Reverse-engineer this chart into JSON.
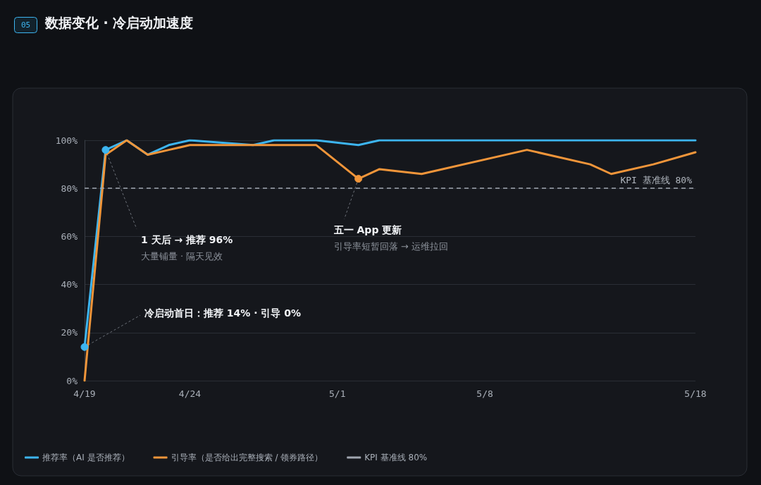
{
  "chart_data": {
    "type": "line",
    "title": "数据变化 · 冷启动加速度",
    "annotations": [
      "05",
      {
        "text": "1 天后 → 推荐 96%",
        "x": "--04-20",
        "y": 96
      },
      "大量铺量 · 隔天见效",
      {
        "text": "冷启动首日：推荐 14% · 引导 0%",
        "x": "--04-19",
        "y": 14
      },
      {
        "text": "五一 App 更新",
        "x": "--05-02",
        "y": 84
      },
      "引导率短暂回落 → 运维拉回"
    ],
    "series": [
      {
        "name": "推荐率（AI 是否推荐）",
        "color": "#3db5f0",
        "x": [
          "--04-19",
          "--04-20",
          "--04-21",
          "--04-22",
          "--04-23",
          "--04-24",
          "--04-27",
          "--04-28",
          "--04-30",
          "--05-02",
          "--05-03",
          "--05-18"
        ],
        "values": [
          14,
          96,
          100,
          94,
          98,
          100,
          98,
          100,
          100,
          98,
          100,
          100
        ]
      },
      {
        "name": "引导率（是否给出完整搜索 / 领券路径）",
        "color": "#f0953a",
        "x": [
          "--04-19",
          "--04-20",
          "--04-21",
          "--04-22",
          "--04-23",
          "--04-24",
          "--04-30",
          "--05-02",
          "--05-03",
          "--05-05",
          "--05-10",
          "--05-13",
          "--05-14",
          "--05-16",
          "--05-18"
        ],
        "values": [
          0,
          94,
          100,
          94,
          96,
          98,
          98,
          84,
          88,
          86,
          96,
          90,
          86,
          90,
          95
        ]
      }
    ],
    "ref_lines": [
      {
        "axis": "y",
        "value": 80,
        "label": "KPI 基准线 80%",
        "color": "#a0a6b0",
        "line_style": "dashed"
      }
    ],
    "xlim": [
      "--04-19",
      "--05-18"
    ],
    "xticks": [
      {
        "value": "--04-19",
        "label": "4/19"
      },
      {
        "value": "--04-24",
        "label": "4/24"
      },
      {
        "value": "--05-01",
        "label": "5/1"
      },
      {
        "value": "--05-08",
        "label": "5/8"
      },
      {
        "value": "--05-18",
        "label": "5/18"
      }
    ],
    "ylim": [
      0,
      100
    ],
    "yticks": [
      {
        "value": 0,
        "label": "0%"
      },
      {
        "value": 20,
        "label": "20%"
      },
      {
        "value": 40,
        "label": "40%"
      },
      {
        "value": 60,
        "label": "60%"
      },
      {
        "value": 80,
        "label": "80%"
      },
      {
        "value": 100,
        "label": "100%"
      }
    ],
    "grid": "y",
    "legend": "bottom",
    "marker": "none",
    "line_style": "solid"
  }
}
